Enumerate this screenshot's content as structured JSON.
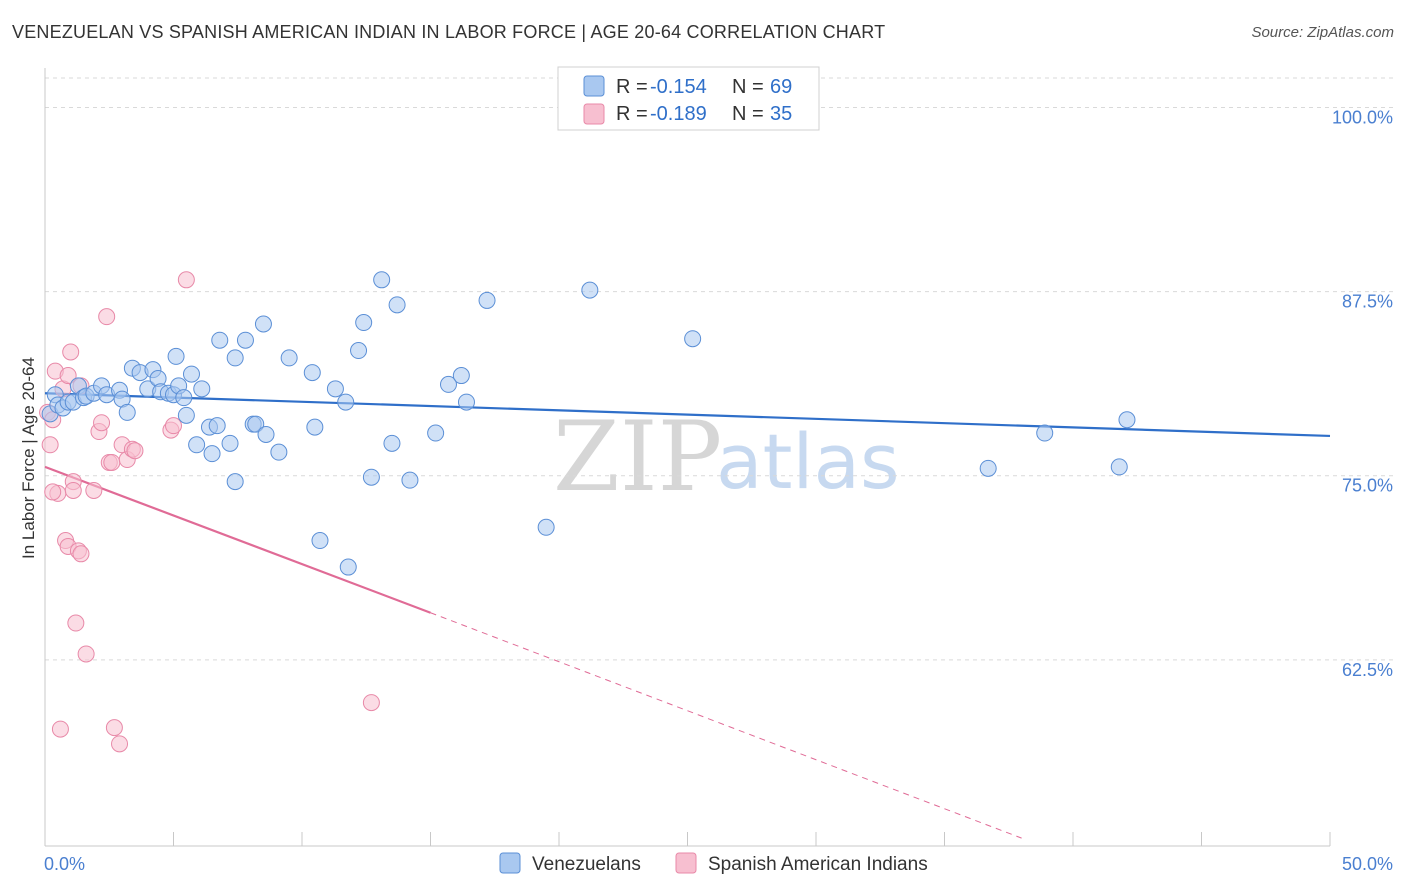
{
  "title": "VENEZUELAN VS SPANISH AMERICAN INDIAN IN LABOR FORCE | AGE 20-64 CORRELATION CHART",
  "source": "Source: ZipAtlas.com",
  "watermark": {
    "part1": "ZIP",
    "part2": "atlas"
  },
  "colors": {
    "venezuelan_fill": "#a9c8f0",
    "venezuelan_stroke": "#5b8fd6",
    "venezuelan_line": "#2f6fc9",
    "spanish_fill": "#f7bfd0",
    "spanish_stroke": "#e889a8",
    "spanish_line": "#e06b96",
    "grid": "#d9d9d9",
    "tick_label": "#4a7fd0"
  },
  "legend": {
    "rows": [
      {
        "r_label": "R =",
        "r_value": "-0.154",
        "n_label": "N =",
        "n_value": "69"
      },
      {
        "r_label": "R =",
        "r_value": "-0.189",
        "n_label": "N =",
        "n_value": "35"
      }
    ]
  },
  "chart_data": {
    "type": "scatter",
    "title": "VENEZUELAN VS SPANISH AMERICAN INDIAN IN LABOR FORCE | AGE 20-64 CORRELATION CHART",
    "xlabel": "",
    "ylabel": "In Labor Force | Age 20-64",
    "xlim": [
      0,
      50
    ],
    "ylim": [
      50,
      102
    ],
    "x_tick_labels": [
      "0.0%",
      "50.0%"
    ],
    "y_ticks": [
      100,
      87.5,
      75,
      62.5
    ],
    "y_tick_labels": [
      "100.0%",
      "87.5%",
      "75.0%",
      "62.5%"
    ],
    "grid": true,
    "legend_position": "top-center",
    "series": [
      {
        "name": "Venezuelans",
        "r": -0.154,
        "n": 69,
        "trend": {
          "x": [
            0,
            50
          ],
          "y": [
            80.6,
            77.7
          ],
          "style": "solid"
        },
        "points": [
          [
            0.2,
            79.2
          ],
          [
            0.4,
            80.5
          ],
          [
            0.5,
            79.8
          ],
          [
            0.7,
            79.6
          ],
          [
            0.9,
            80.0
          ],
          [
            1.1,
            80.0
          ],
          [
            1.3,
            81.1
          ],
          [
            1.5,
            80.3
          ],
          [
            1.6,
            80.4
          ],
          [
            1.9,
            80.6
          ],
          [
            2.2,
            81.1
          ],
          [
            2.4,
            80.5
          ],
          [
            2.9,
            80.8
          ],
          [
            3.0,
            80.2
          ],
          [
            3.2,
            79.3
          ],
          [
            3.4,
            82.3
          ],
          [
            3.7,
            82.0
          ],
          [
            4.0,
            80.9
          ],
          [
            4.2,
            82.2
          ],
          [
            4.4,
            81.6
          ],
          [
            4.5,
            80.7
          ],
          [
            4.8,
            80.6
          ],
          [
            5.0,
            80.5
          ],
          [
            5.1,
            83.1
          ],
          [
            5.2,
            81.1
          ],
          [
            5.4,
            80.3
          ],
          [
            5.5,
            79.1
          ],
          [
            5.7,
            81.9
          ],
          [
            5.9,
            77.1
          ],
          [
            6.1,
            80.9
          ],
          [
            6.4,
            78.3
          ],
          [
            6.5,
            76.5
          ],
          [
            6.7,
            78.4
          ],
          [
            6.8,
            84.2
          ],
          [
            7.2,
            77.2
          ],
          [
            7.4,
            83.0
          ],
          [
            7.4,
            74.6
          ],
          [
            7.8,
            84.2
          ],
          [
            8.1,
            78.5
          ],
          [
            8.2,
            78.5
          ],
          [
            8.5,
            85.3
          ],
          [
            8.6,
            77.8
          ],
          [
            9.1,
            76.6
          ],
          [
            9.5,
            83.0
          ],
          [
            10.4,
            82.0
          ],
          [
            10.5,
            78.3
          ],
          [
            10.7,
            70.6
          ],
          [
            11.3,
            80.9
          ],
          [
            11.7,
            80.0
          ],
          [
            11.8,
            68.8
          ],
          [
            12.2,
            83.5
          ],
          [
            12.4,
            85.4
          ],
          [
            12.7,
            74.9
          ],
          [
            13.1,
            88.3
          ],
          [
            13.5,
            77.2
          ],
          [
            13.7,
            86.6
          ],
          [
            14.2,
            74.7
          ],
          [
            15.2,
            77.9
          ],
          [
            15.7,
            81.2
          ],
          [
            16.2,
            81.8
          ],
          [
            16.4,
            80.0
          ],
          [
            17.2,
            86.9
          ],
          [
            19.5,
            71.5
          ],
          [
            21.2,
            87.6
          ],
          [
            25.2,
            84.3
          ],
          [
            36.7,
            75.5
          ],
          [
            38.9,
            77.9
          ],
          [
            41.8,
            75.6
          ],
          [
            42.1,
            78.8
          ]
        ]
      },
      {
        "name": "Spanish American Indians",
        "r": -0.189,
        "n": 35,
        "trend": {
          "x": [
            0,
            15
          ],
          "y": [
            75.6,
            65.7
          ],
          "style": "solid"
        },
        "trend_extension": {
          "x": [
            15,
            38
          ],
          "y": [
            65.7,
            50.4
          ],
          "style": "dashed"
        },
        "points": [
          [
            0.1,
            79.3
          ],
          [
            0.2,
            77.1
          ],
          [
            0.3,
            78.8
          ],
          [
            0.4,
            82.1
          ],
          [
            0.5,
            73.8
          ],
          [
            0.6,
            57.8
          ],
          [
            0.7,
            80.9
          ],
          [
            0.8,
            70.6
          ],
          [
            0.9,
            70.2
          ],
          [
            0.9,
            81.8
          ],
          [
            1.0,
            83.4
          ],
          [
            1.1,
            74.6
          ],
          [
            1.1,
            74.0
          ],
          [
            1.2,
            65.0
          ],
          [
            1.3,
            69.9
          ],
          [
            1.4,
            69.7
          ],
          [
            1.4,
            81.1
          ],
          [
            1.6,
            62.9
          ],
          [
            1.9,
            74.0
          ],
          [
            2.1,
            78.0
          ],
          [
            2.2,
            78.6
          ],
          [
            2.4,
            85.8
          ],
          [
            2.5,
            75.9
          ],
          [
            2.6,
            75.9
          ],
          [
            2.7,
            57.9
          ],
          [
            2.9,
            56.8
          ],
          [
            3.0,
            77.1
          ],
          [
            3.2,
            76.1
          ],
          [
            3.4,
            76.8
          ],
          [
            3.5,
            76.7
          ],
          [
            4.9,
            78.1
          ],
          [
            5.0,
            78.4
          ],
          [
            5.5,
            88.3
          ],
          [
            12.7,
            59.6
          ],
          [
            0.3,
            73.9
          ]
        ]
      }
    ]
  },
  "bottom_legend": {
    "items": [
      {
        "label": "Venezuelans"
      },
      {
        "label": "Spanish American Indians"
      }
    ]
  }
}
